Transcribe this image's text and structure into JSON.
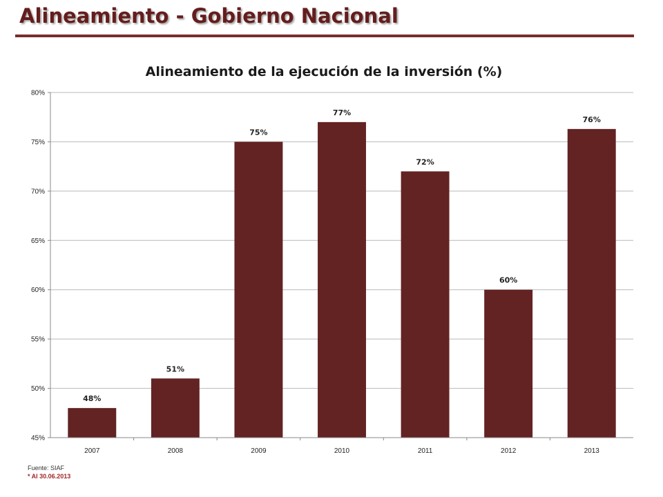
{
  "page": {
    "title": "Alineamiento - Gobierno Nacional",
    "source": "Fuente: SIAF",
    "as_of": "* Al 30.06.2013"
  },
  "colors": {
    "bar": "#632323",
    "title": "#641d1d",
    "rule": "#7a2b2b",
    "grid": "#b8b8b8"
  },
  "chart_data": {
    "type": "bar",
    "title": "Alineamiento de la ejecución de la inversión (%)",
    "xlabel": "",
    "ylabel": "",
    "categories": [
      "2007",
      "2008",
      "2009",
      "2010",
      "2011",
      "2012",
      "2013"
    ],
    "values": [
      48,
      51,
      75,
      77,
      72,
      60,
      76.3
    ],
    "data_labels": [
      "48%",
      "51%",
      "75%",
      "77%",
      "72%",
      "60%",
      "76%"
    ],
    "ylim": [
      45,
      80
    ],
    "yticks": [
      45,
      50,
      55,
      60,
      65,
      70,
      75,
      80
    ],
    "ytick_labels": [
      "45%",
      "50%",
      "55%",
      "60%",
      "65%",
      "70%",
      "75%",
      "80%"
    ],
    "grid": true,
    "legend": "none"
  }
}
